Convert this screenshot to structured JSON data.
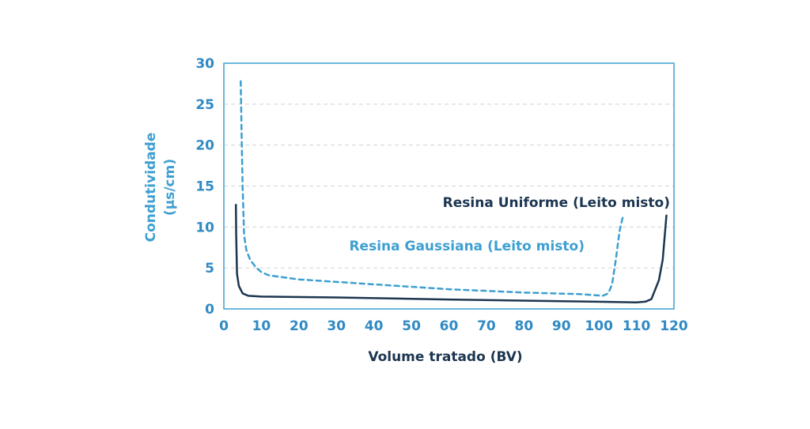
{
  "chart_data": {
    "type": "line",
    "title": "",
    "xlabel": "Volume tratado (BV)",
    "ylabel_lines": [
      "Condutividade",
      "(µs/cm)"
    ],
    "xlim": [
      0,
      120
    ],
    "ylim": [
      0,
      30
    ],
    "xticks": [
      0,
      10,
      20,
      30,
      40,
      50,
      60,
      70,
      80,
      90,
      100,
      110,
      120
    ],
    "yticks": [
      0,
      5,
      10,
      15,
      20,
      25,
      30
    ],
    "grid": "horizontal-dashed",
    "legend": "none",
    "series": [
      {
        "name": "Resina Gaussiana (Leito misto)",
        "style": "dashed",
        "color": "#3d9fd1",
        "points": [
          [
            4.5,
            27.8
          ],
          [
            4.7,
            22.0
          ],
          [
            5.0,
            15.0
          ],
          [
            5.4,
            9.0
          ],
          [
            6.0,
            7.2
          ],
          [
            7.0,
            6.0
          ],
          [
            8.5,
            5.1
          ],
          [
            10.0,
            4.5
          ],
          [
            12.0,
            4.1
          ],
          [
            20.0,
            3.6
          ],
          [
            40.0,
            3.0
          ],
          [
            60.0,
            2.4
          ],
          [
            80.0,
            2.0
          ],
          [
            95.0,
            1.8
          ],
          [
            101.0,
            1.6
          ],
          [
            102.5,
            1.9
          ],
          [
            103.5,
            3.0
          ],
          [
            104.5,
            6.0
          ],
          [
            105.5,
            9.5
          ],
          [
            106.5,
            11.5
          ]
        ]
      },
      {
        "name": "Resina Uniforme (Leito misto)",
        "style": "solid",
        "color": "#1c3550",
        "points": [
          [
            3.2,
            12.7
          ],
          [
            3.3,
            9.0
          ],
          [
            3.5,
            4.3
          ],
          [
            4.0,
            2.8
          ],
          [
            5.0,
            1.9
          ],
          [
            6.5,
            1.6
          ],
          [
            10.0,
            1.5
          ],
          [
            30.0,
            1.4
          ],
          [
            60.0,
            1.15
          ],
          [
            90.0,
            0.95
          ],
          [
            110.0,
            0.8
          ],
          [
            112.5,
            0.9
          ],
          [
            114.0,
            1.2
          ],
          [
            116.0,
            3.5
          ],
          [
            117.0,
            6.0
          ],
          [
            118.0,
            11.4
          ]
        ]
      }
    ],
    "colors": {
      "axis": "#3d9fd1",
      "tick_text": "#2f8ac4",
      "ylabel_text": "#3d9fd1",
      "xlabel_text": "#1c3550",
      "grid": "#d3d3d3"
    }
  }
}
